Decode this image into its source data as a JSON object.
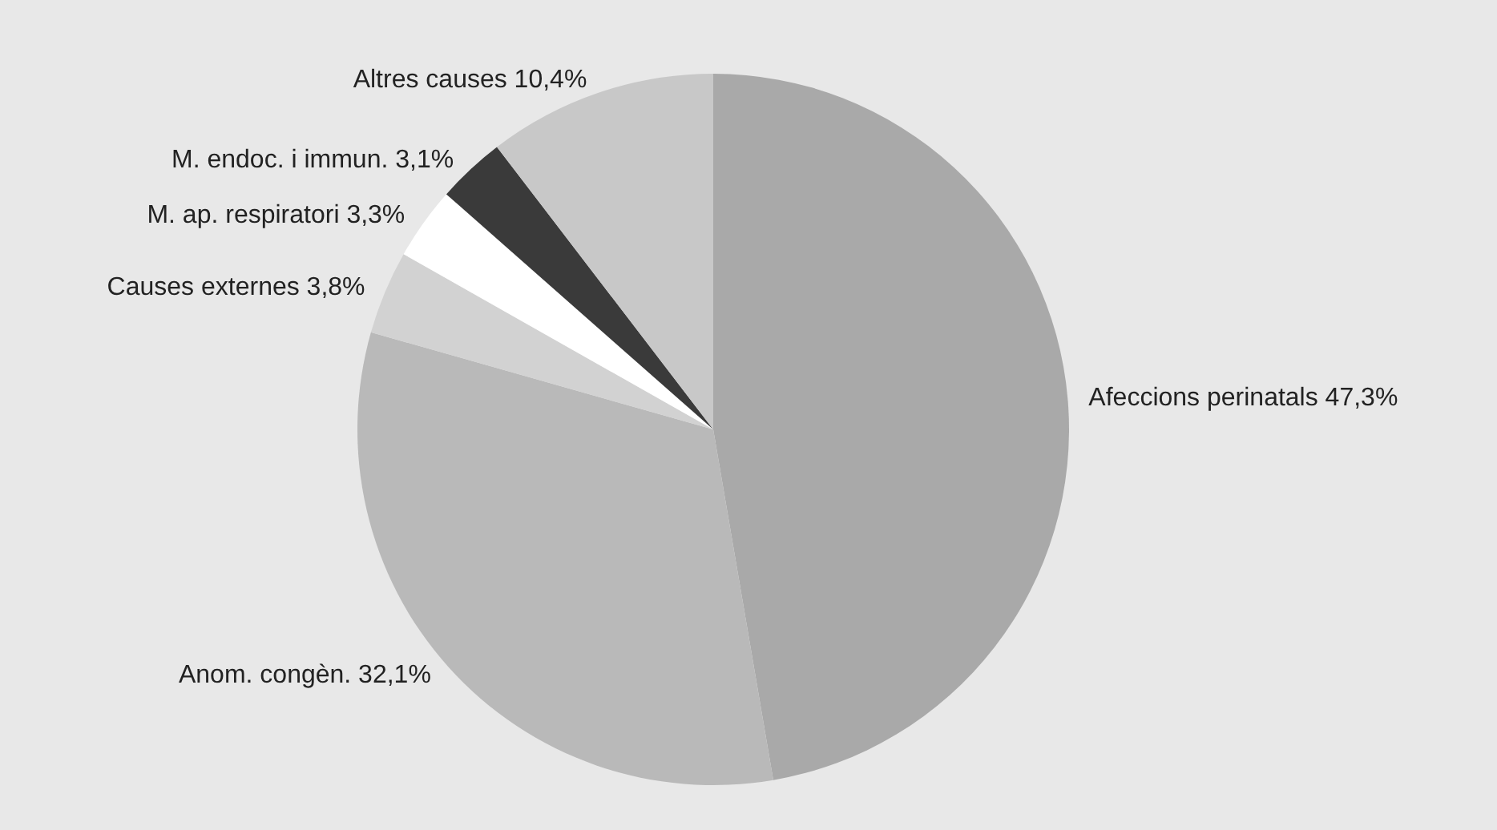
{
  "chart_data": {
    "type": "pie",
    "categories": [
      "Afeccions perinatals",
      "Anom. congèn.",
      "Causes externes",
      "M. ap. respiratori",
      "M. endoc. i immun.",
      "Altres causes"
    ],
    "values": [
      47.3,
      32.1,
      3.8,
      3.3,
      3.1,
      10.4
    ],
    "value_labels": [
      "47,3%",
      "32,1%",
      "3,8%",
      "3,3%",
      "3,1%",
      "10,4%"
    ],
    "colors": [
      "#a9a9a9",
      "#b9b9b9",
      "#d2d2d2",
      "#ffffff",
      "#3a3a3a",
      "#c8c8c8"
    ],
    "legend": false
  }
}
